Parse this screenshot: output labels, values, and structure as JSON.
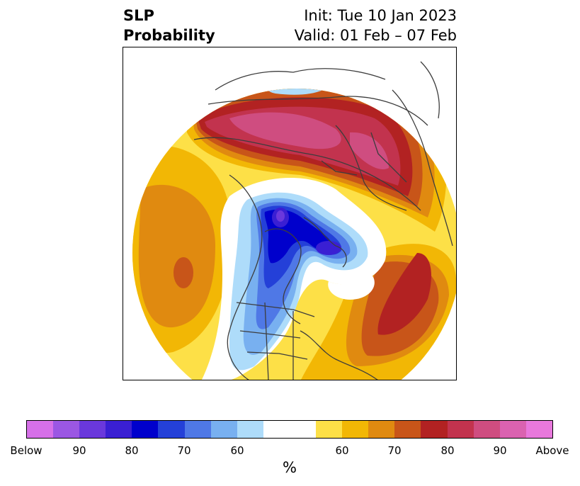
{
  "header": {
    "title_line1": "SLP",
    "title_line2": "Probability",
    "init": "Init: Tue 10 Jan 2023",
    "valid": "Valid: 01 Feb – 07 Feb"
  },
  "colorbar": {
    "colors": [
      "#d670e8",
      "#9b57e3",
      "#6a38dc",
      "#3a1fd3",
      "#0000cc",
      "#2440d8",
      "#4f78e6",
      "#78b0f0",
      "#aedcfa",
      "#ffffff",
      "#ffffff",
      "#fde047",
      "#f2b705",
      "#e08a10",
      "#c85519",
      "#b22222",
      "#c2334e",
      "#cf4d80",
      "#da62b0",
      "#e878dc"
    ],
    "ticks": [
      "Below",
      "90",
      "80",
      "70",
      "60",
      "60",
      "70",
      "80",
      "90",
      "Above"
    ],
    "unit": "%"
  },
  "colors": {
    "coastline": "#3d3d3d",
    "neg_strong": "#0000cc",
    "pos_strong": "#c2334e"
  }
}
